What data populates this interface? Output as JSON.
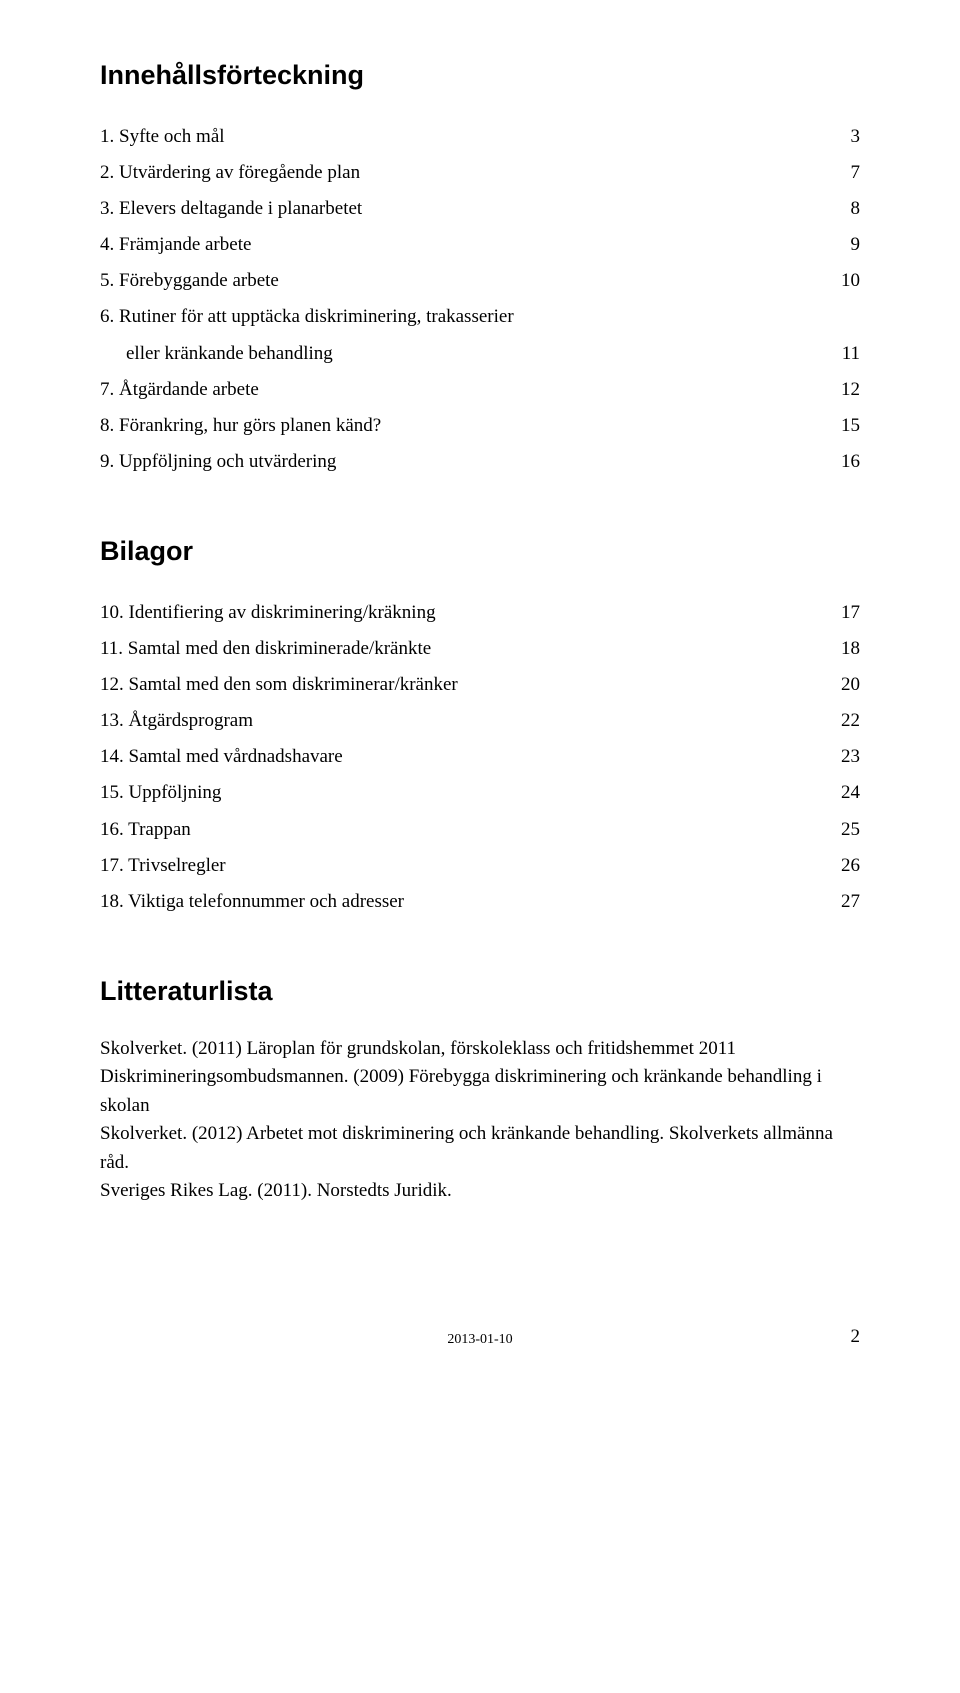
{
  "title_fontsize": 27,
  "body_fontsize": 19,
  "footer_fontsize": 14,
  "colors": {
    "text": "#000000",
    "background": "#ffffff"
  },
  "heading_main": "Innehållsförteckning",
  "toc_main": [
    {
      "label": "1. Syfte och mål",
      "page": "3"
    },
    {
      "label": "2. Utvärdering av föregående plan",
      "page": "7"
    },
    {
      "label": "3. Elevers deltagande i planarbetet",
      "page": "8"
    },
    {
      "label": "4. Främjande arbete",
      "page": "9"
    },
    {
      "label": "5. Förebyggande arbete",
      "page": "10"
    },
    {
      "label": "6. Rutiner för att upptäcka diskriminering, trakasserier",
      "sublabel": "eller kränkande behandling",
      "page": "11"
    },
    {
      "label": "7. Åtgärdande arbete",
      "page": "12"
    },
    {
      "label": "8. Förankring, hur görs planen känd?",
      "page": "15"
    },
    {
      "label": "9. Uppföljning och utvärdering",
      "page": "16"
    }
  ],
  "heading_bilagor": "Bilagor",
  "toc_bilagor": [
    {
      "label": "10. Identifiering av diskriminering/kräkning",
      "page": "17"
    },
    {
      "label": "11. Samtal med den diskriminerade/kränkte",
      "page": "18"
    },
    {
      "label": "12. Samtal med den som diskriminerar/kränker",
      "page": "20"
    },
    {
      "label": "13. Åtgärdsprogram",
      "page": "22"
    },
    {
      "label": "14. Samtal med vårdnadshavare",
      "page": "23"
    },
    {
      "label": "15. Uppföljning",
      "page": "24"
    },
    {
      "label": "16. Trappan",
      "page": "25"
    },
    {
      "label": "17. Trivselregler",
      "page": "26"
    },
    {
      "label": "18. Viktiga telefonnummer och adresser",
      "page": "27"
    }
  ],
  "heading_lit": "Litteraturlista",
  "lit_lines": [
    "Skolverket. (2011) Läroplan för grundskolan, förskoleklass och fritidshemmet 2011",
    "Diskrimineringsombudsmannen. (2009) Förebygga diskriminering och kränkande behandling i skolan",
    "Skolverket. (2012) Arbetet mot diskriminering och kränkande behandling. Skolverkets allmänna råd.",
    "Sveriges Rikes Lag. (2011). Norstedts Juridik."
  ],
  "footer": {
    "date": "2013-01-10",
    "page": "2"
  }
}
